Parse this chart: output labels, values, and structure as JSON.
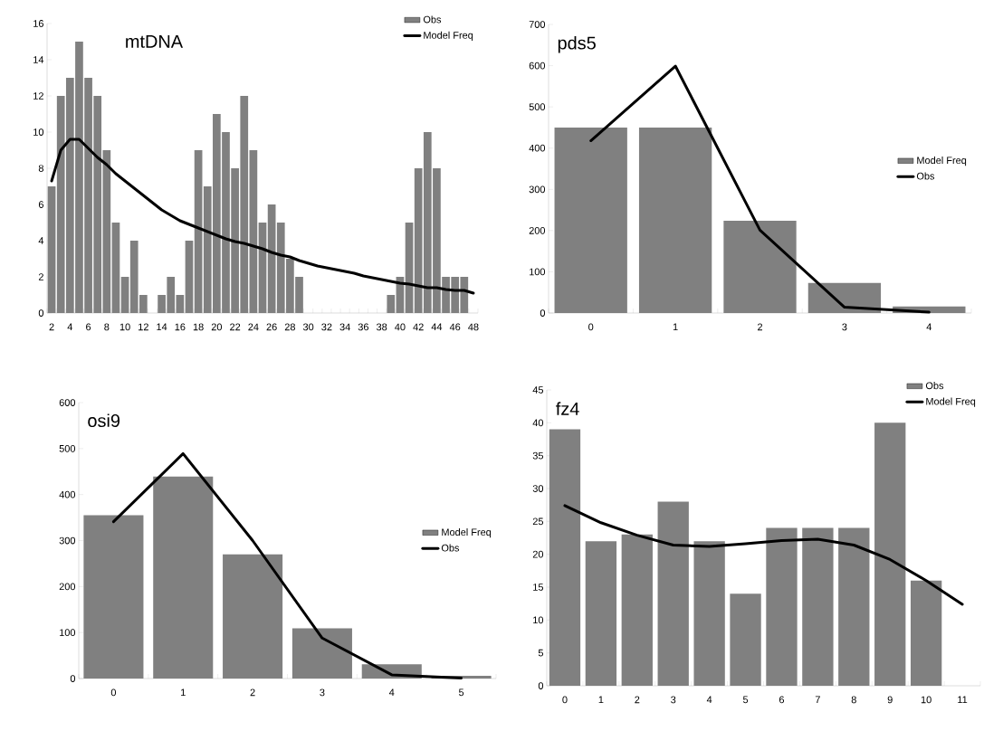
{
  "chart_data": [
    {
      "type": "bar",
      "title": "mtDNA",
      "categories": [
        "2",
        null,
        "4",
        null,
        "6",
        null,
        "8",
        null,
        "10",
        null,
        "12",
        null,
        "14",
        null,
        "16",
        null,
        "18",
        null,
        "20",
        null,
        "22",
        null,
        "24",
        null,
        "26",
        null,
        "28",
        null,
        "30",
        null,
        "32",
        null,
        "34",
        null,
        "36",
        null,
        "38",
        null,
        "40",
        null,
        "42",
        null,
        "44",
        null,
        "46",
        null,
        "48"
      ],
      "series": [
        {
          "name": "Obs",
          "color": "#808080",
          "values": [
            7,
            12,
            13,
            15,
            13,
            12,
            9,
            5,
            2,
            4,
            1,
            0,
            1,
            2,
            1,
            4,
            9,
            7,
            11,
            10,
            8,
            12,
            9,
            5,
            6,
            5,
            3,
            2,
            0,
            0,
            0,
            0,
            0,
            0,
            0,
            0,
            0,
            1,
            2,
            5,
            8,
            10,
            8,
            2,
            2,
            2,
            0
          ]
        },
        {
          "name": "Model Freq",
          "type": "line",
          "color": "#000000",
          "values": [
            7.3,
            9.0,
            9.6,
            9.6,
            9.1,
            8.6,
            8.2,
            7.7,
            7.3,
            6.9,
            6.5,
            6.1,
            5.7,
            5.4,
            5.1,
            4.9,
            4.7,
            4.5,
            4.3,
            4.1,
            3.95,
            3.85,
            3.7,
            3.55,
            3.35,
            3.2,
            3.1,
            2.9,
            2.75,
            2.6,
            2.5,
            2.4,
            2.3,
            2.2,
            2.05,
            1.95,
            1.85,
            1.75,
            1.65,
            1.6,
            1.5,
            1.4,
            1.4,
            1.3,
            1.25,
            1.25,
            1.1
          ]
        }
      ],
      "ylim": [
        0,
        16
      ],
      "yticks": [
        0,
        2,
        4,
        6,
        8,
        10,
        12,
        14,
        16
      ],
      "legend": "top right"
    },
    {
      "type": "bar",
      "title": "pds5",
      "categories": [
        "0",
        "1",
        "2",
        "3",
        "4"
      ],
      "series": [
        {
          "name": "Model Freq",
          "color": "#808080",
          "values": [
            450,
            450,
            224,
            73,
            16
          ]
        },
        {
          "name": "Obs",
          "type": "line",
          "color": "#000000",
          "values": [
            418,
            599,
            201,
            14,
            2
          ]
        }
      ],
      "ylim": [
        0,
        700
      ],
      "yticks": [
        0,
        100,
        200,
        300,
        400,
        500,
        600,
        700
      ],
      "legend": "right"
    },
    {
      "type": "bar",
      "title": "osi9",
      "categories": [
        "0",
        "1",
        "2",
        "3",
        "4",
        "5"
      ],
      "series": [
        {
          "name": "Model Freq",
          "color": "#808080",
          "values": [
            355,
            439,
            270,
            109,
            31,
            6
          ]
        },
        {
          "name": "Obs",
          "type": "line",
          "color": "#000000",
          "values": [
            341,
            489,
            300,
            88,
            8,
            1
          ]
        }
      ],
      "ylim": [
        0,
        600
      ],
      "yticks": [
        0,
        100,
        200,
        300,
        400,
        500,
        600
      ],
      "legend": "right"
    },
    {
      "type": "bar",
      "title": "fz4",
      "categories": [
        "0",
        "1",
        "2",
        "3",
        "4",
        "5",
        "6",
        "7",
        "8",
        "9",
        "10",
        "11"
      ],
      "series": [
        {
          "name": "Obs",
          "color": "#808080",
          "values": [
            39,
            22,
            23,
            28,
            22,
            14,
            24,
            24,
            24,
            40,
            16,
            null
          ]
        },
        {
          "name": "Model Freq",
          "type": "line",
          "color": "#000000",
          "values": [
            27.4,
            24.8,
            22.9,
            21.4,
            21.2,
            21.6,
            22.1,
            22.3,
            21.4,
            19.2,
            16.0,
            12.4
          ]
        }
      ],
      "ylim": [
        0,
        45
      ],
      "yticks": [
        0,
        5,
        10,
        15,
        20,
        25,
        30,
        35,
        40,
        45
      ],
      "legend": "top right"
    }
  ]
}
